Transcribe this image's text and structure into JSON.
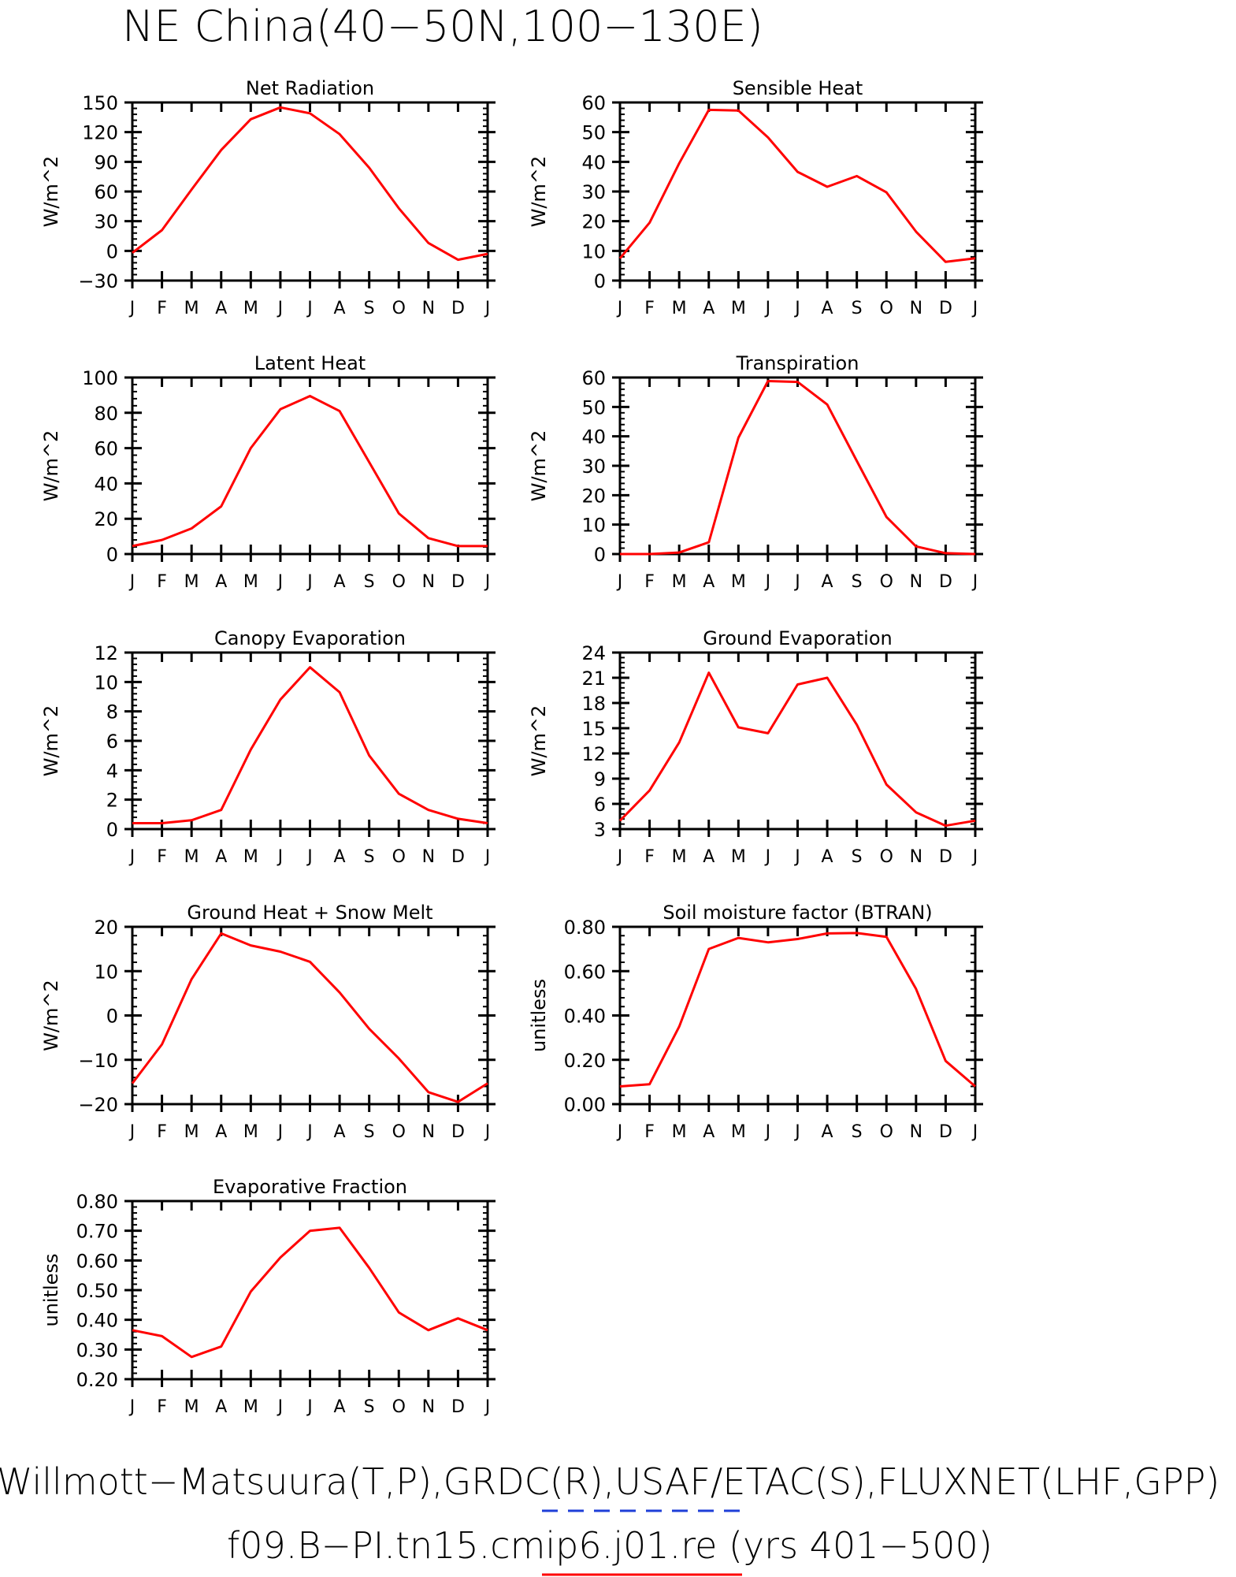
{
  "page_title": "NE China(40−50N,100−130E)",
  "footer": {
    "line1": "Willmott−Matsuura(T,P),GRDC(R),USAF/ETAC(S),FLUXNET(LHF,GPP)",
    "line2": "f09.B−PI.tn15.cmip6.j01.re (yrs 401−500)",
    "legend_colors": {
      "dashed": "#1f3fd8",
      "solid": "#ff0000"
    }
  },
  "line_color": "#ff0000",
  "chart_data": [
    {
      "type": "line",
      "title": "Net Radiation",
      "ylabel": "W/m^2",
      "ylim": [
        -30,
        150
      ],
      "yticks": [
        -30,
        0,
        30,
        60,
        90,
        120,
        150
      ],
      "ytick_labels": [
        "−30",
        "0",
        "30",
        "60",
        "90",
        "120",
        "150"
      ],
      "categories": [
        "J",
        "F",
        "M",
        "A",
        "M",
        "J",
        "J",
        "A",
        "S",
        "O",
        "N",
        "D",
        "J"
      ],
      "values": [
        -2,
        21,
        62,
        102,
        133,
        145,
        139,
        118,
        84,
        43,
        8,
        -9,
        -3
      ]
    },
    {
      "type": "line",
      "title": "Sensible Heat",
      "ylabel": "W/m^2",
      "ylim": [
        0,
        60
      ],
      "yticks": [
        0,
        10,
        20,
        30,
        40,
        50,
        60
      ],
      "ytick_labels": [
        "0",
        "10",
        "20",
        "30",
        "40",
        "50",
        "60"
      ],
      "categories": [
        "J",
        "F",
        "M",
        "A",
        "M",
        "J",
        "J",
        "A",
        "S",
        "O",
        "N",
        "D",
        "J"
      ],
      "values": [
        7.5,
        19.5,
        39.5,
        57.5,
        57.3,
        48.2,
        36.6,
        31.6,
        35.2,
        29.7,
        16.5,
        6.3,
        7.5
      ]
    },
    {
      "type": "line",
      "title": "Latent Heat",
      "ylabel": "W/m^2",
      "ylim": [
        0,
        100
      ],
      "yticks": [
        0,
        20,
        40,
        60,
        80,
        100
      ],
      "ytick_labels": [
        "0",
        "20",
        "40",
        "60",
        "80",
        "100"
      ],
      "categories": [
        "J",
        "F",
        "M",
        "A",
        "M",
        "J",
        "J",
        "A",
        "S",
        "O",
        "N",
        "D",
        "J"
      ],
      "values": [
        4.5,
        8,
        14.5,
        27,
        60,
        82,
        89.5,
        81,
        52,
        23,
        9,
        4.5,
        4.5
      ]
    },
    {
      "type": "line",
      "title": "Transpiration",
      "ylabel": "W/m^2",
      "ylim": [
        0,
        60
      ],
      "yticks": [
        0,
        10,
        20,
        30,
        40,
        50,
        60
      ],
      "ytick_labels": [
        "0",
        "10",
        "20",
        "30",
        "40",
        "50",
        "60"
      ],
      "categories": [
        "J",
        "F",
        "M",
        "A",
        "M",
        "J",
        "J",
        "A",
        "S",
        "O",
        "N",
        "D",
        "J"
      ],
      "values": [
        0,
        0,
        0.5,
        4,
        39.5,
        58.8,
        58.5,
        50.8,
        31.6,
        12.6,
        2.6,
        0.3,
        0
      ]
    },
    {
      "type": "line",
      "title": "Canopy Evaporation",
      "ylabel": "W/m^2",
      "ylim": [
        0,
        12
      ],
      "yticks": [
        0,
        2,
        4,
        6,
        8,
        10,
        12
      ],
      "ytick_labels": [
        "0",
        "2",
        "4",
        "6",
        "8",
        "10",
        "12"
      ],
      "categories": [
        "J",
        "F",
        "M",
        "A",
        "M",
        "J",
        "J",
        "A",
        "S",
        "O",
        "N",
        "D",
        "J"
      ],
      "values": [
        0.4,
        0.4,
        0.6,
        1.3,
        5.4,
        8.8,
        11,
        9.3,
        5,
        2.4,
        1.3,
        0.7,
        0.4
      ]
    },
    {
      "type": "line",
      "title": "Ground Evaporation",
      "ylabel": "W/m^2",
      "ylim": [
        3,
        24
      ],
      "yticks": [
        3,
        6,
        9,
        12,
        15,
        18,
        21,
        24
      ],
      "ytick_labels": [
        "3",
        "6",
        "9",
        "12",
        "15",
        "18",
        "21",
        "24"
      ],
      "categories": [
        "J",
        "F",
        "M",
        "A",
        "M",
        "J",
        "J",
        "A",
        "S",
        "O",
        "N",
        "D",
        "J"
      ],
      "values": [
        4,
        7.6,
        13.3,
        21.6,
        15.1,
        14.4,
        20.2,
        21,
        15.4,
        8.3,
        5,
        3.4,
        4
      ]
    },
    {
      "type": "line",
      "title": "Ground Heat + Snow Melt",
      "ylabel": "W/m^2",
      "ylim": [
        -20,
        20
      ],
      "yticks": [
        -20,
        -10,
        0,
        10,
        20
      ],
      "ytick_labels": [
        "−20",
        "−10",
        "0",
        "10",
        "20"
      ],
      "categories": [
        "J",
        "F",
        "M",
        "A",
        "M",
        "J",
        "J",
        "A",
        "S",
        "O",
        "N",
        "D",
        "J"
      ],
      "values": [
        -15.3,
        -6.5,
        8.2,
        18.5,
        15.8,
        14.4,
        12.1,
        5.2,
        -3,
        -9.7,
        -17.3,
        -19.5,
        -15.3
      ]
    },
    {
      "type": "line",
      "title": "Soil moisture factor (BTRAN)",
      "ylabel": "unitless",
      "ylim": [
        0,
        0.8
      ],
      "yticks": [
        0,
        0.2,
        0.4,
        0.6,
        0.8
      ],
      "ytick_labels": [
        "0.00",
        "0.20",
        "0.40",
        "0.60",
        "0.80"
      ],
      "categories": [
        "J",
        "F",
        "M",
        "A",
        "M",
        "J",
        "J",
        "A",
        "S",
        "O",
        "N",
        "D",
        "J"
      ],
      "values": [
        0.08,
        0.09,
        0.35,
        0.7,
        0.75,
        0.73,
        0.745,
        0.77,
        0.772,
        0.755,
        0.52,
        0.195,
        0.08
      ]
    },
    {
      "type": "line",
      "title": "Evaporative Fraction",
      "ylabel": "unitless",
      "ylim": [
        0.2,
        0.8
      ],
      "yticks": [
        0.2,
        0.3,
        0.4,
        0.5,
        0.6,
        0.7,
        0.8
      ],
      "ytick_labels": [
        "0.20",
        "0.30",
        "0.40",
        "0.50",
        "0.60",
        "0.70",
        "0.80"
      ],
      "categories": [
        "J",
        "F",
        "M",
        "A",
        "M",
        "J",
        "J",
        "A",
        "S",
        "O",
        "N",
        "D",
        "J"
      ],
      "values": [
        0.365,
        0.345,
        0.275,
        0.31,
        0.495,
        0.61,
        0.7,
        0.71,
        0.575,
        0.425,
        0.365,
        0.405,
        0.365
      ]
    }
  ]
}
